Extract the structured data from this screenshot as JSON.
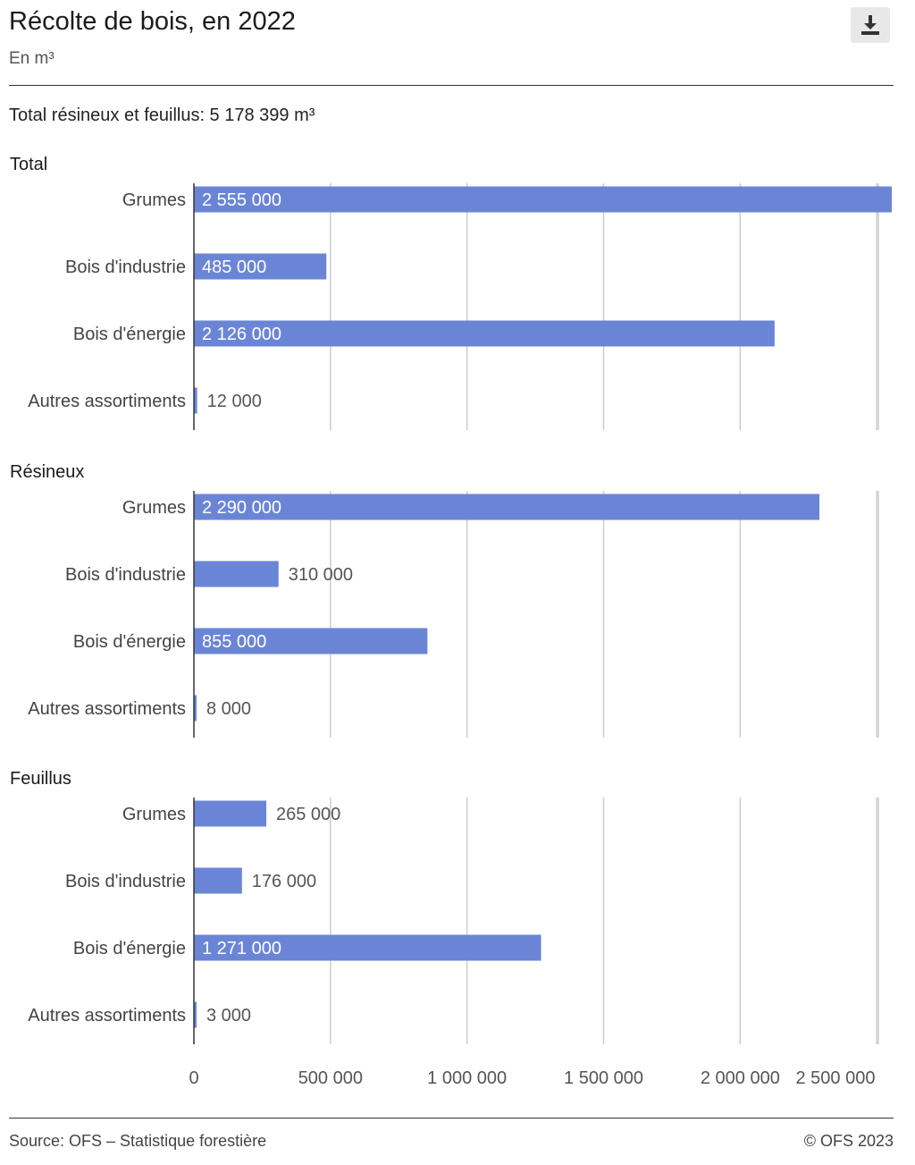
{
  "header": {
    "title": "Récolte de bois, en 2022",
    "subtitle": "En m³",
    "download_icon": "download-icon"
  },
  "total_line": "Total résineux et feuillus: 5 178 399 m³",
  "footer": {
    "source": "Source: OFS – Statistique forestière",
    "copyright": "© OFS 2023"
  },
  "colors": {
    "bar": "#6b85d6",
    "grid": "#cccccc",
    "axis": "#333333"
  },
  "chart_data": {
    "type": "bar",
    "orientation": "horizontal",
    "categories": [
      "Grumes",
      "Bois d'industrie",
      "Bois d'énergie",
      "Autres assortiments"
    ],
    "panels": [
      {
        "name": "Total",
        "values": [
          2555000,
          485000,
          2126000,
          12000
        ],
        "labels": [
          "2 555 000",
          "485 000",
          "2 126 000",
          "12 000"
        ]
      },
      {
        "name": "Résineux",
        "values": [
          2290000,
          310000,
          855000,
          8000
        ],
        "labels": [
          "2 290 000",
          "310 000",
          "855 000",
          "8 000"
        ]
      },
      {
        "name": "Feuillus",
        "values": [
          265000,
          176000,
          1271000,
          3000
        ],
        "labels": [
          "265 000",
          "176 000",
          "1 271 000",
          "3 000"
        ]
      }
    ],
    "xlim": [
      0,
      2555000
    ],
    "x_ticks": [
      0,
      500000,
      1000000,
      1500000,
      2000000,
      2500000
    ],
    "x_tick_labels": [
      "0",
      "500 000",
      "1 000 000",
      "1 500 000",
      "2 000 000",
      "2 500 000"
    ],
    "grid": true
  }
}
